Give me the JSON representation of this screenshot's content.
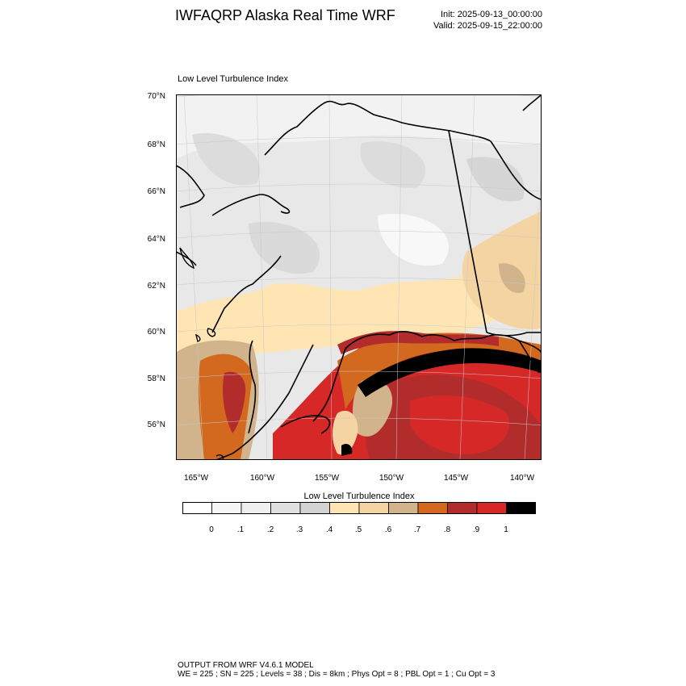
{
  "header": {
    "title": "IWFAQRP Alaska Real Time WRF",
    "init": "Init: 2025-09-13_00:00:00",
    "valid": "Valid: 2025-09-15_22:00:00"
  },
  "map": {
    "label": "Low Level Turbulence Index",
    "lat_labels": [
      "70°N",
      "68°N",
      "66°N",
      "64°N",
      "62°N",
      "60°N",
      "58°N",
      "56°N"
    ],
    "lon_labels": [
      "165°W",
      "160°W",
      "155°W",
      "150°W",
      "145°W",
      "140°W"
    ],
    "land_color": "#ececec",
    "coast_color": "#000000"
  },
  "colorbar": {
    "title": "Low Level Turbulence Index",
    "tick_labels": [
      "0",
      ".1",
      ".2",
      ".3",
      ".4",
      ".5",
      ".6",
      ".7",
      ".8",
      ".9",
      "1"
    ],
    "colors": [
      "#ffffff",
      "#f7f7f7",
      "#efefef",
      "#e1e1e1",
      "#d3d3d3",
      "#ffe5b4",
      "#f5d4a4",
      "#d2b48c",
      "#d2691e",
      "#b22c2c",
      "#d72828",
      "#000000"
    ]
  },
  "footer": {
    "line1": "OUTPUT FROM WRF V4.6.1 MODEL",
    "line2": "WE = 225 ; SN = 225 ; Levels = 38 ; Dis = 8km ; Phys Opt = 8 ; PBL Opt = 1 ; Cu Opt = 3"
  }
}
